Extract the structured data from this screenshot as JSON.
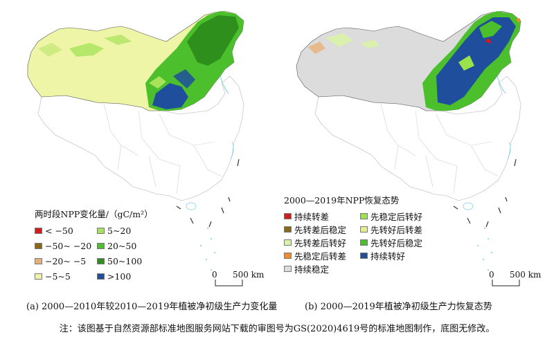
{
  "map_a": {
    "legend_title": "两时段NPP变化量/（gC/m²）",
    "legend_items": [
      {
        "label": "< −50",
        "color": "#d7191c"
      },
      {
        "label": "5~20",
        "color": "#a6e35b"
      },
      {
        "label": "−50~ −20",
        "color": "#8b6914"
      },
      {
        "label": "20~50",
        "color": "#4cbf2c"
      },
      {
        "label": "−20~ −5",
        "color": "#e8b277"
      },
      {
        "label": "50~100",
        "color": "#2f8f1d"
      },
      {
        "label": "−5~5",
        "color": "#eef5a6"
      },
      {
        "label": ">100",
        "color": "#1f4e9c"
      }
    ],
    "scale_zero": "0",
    "scale_label": "500 km",
    "caption": "(a) 2000—2010年较2010—2019年植被净初级生产力变化量"
  },
  "map_b": {
    "legend_title": "2000—2019年NPP恢复态势",
    "legend_items": [
      {
        "label": "持续转差",
        "color": "#d7191c"
      },
      {
        "label": "先稳定后转好",
        "color": "#9be34b"
      },
      {
        "label": "先转差后稳定",
        "color": "#8b6914"
      },
      {
        "label": "先转好后转差",
        "color": "#e4ee8a"
      },
      {
        "label": "先转差后转好",
        "color": "#d9f2a6"
      },
      {
        "label": "先转好后稳定",
        "color": "#4cbf2c"
      },
      {
        "label": "先稳定后转差",
        "color": "#f28c28"
      },
      {
        "label": "持续转好",
        "color": "#1f4e9c"
      },
      {
        "label": "持续稳定",
        "color": "#dcdcdc"
      }
    ],
    "scale_zero": "0",
    "scale_label": "500 km",
    "caption": "(b) 2000—2019年植被净初级生产力恢复态势"
  },
  "footnote": "注：该图基于自然资源部标准地图服务网站下载的审图号为GS(2020)4619号的标准地图制作，底图无修改。"
}
